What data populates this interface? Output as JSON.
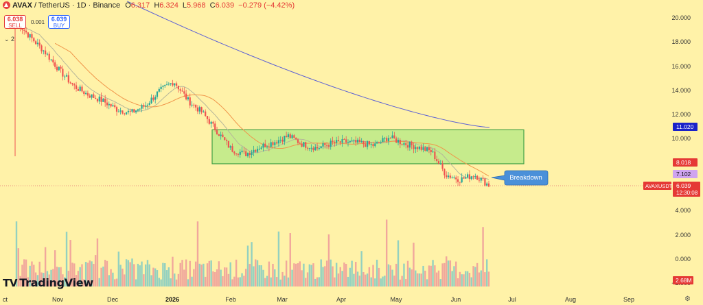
{
  "header": {
    "symbol": "AVAX",
    "pair_text": " / TetherUS · 1D · Binance",
    "open_label": "O",
    "open": "6.317",
    "high_label": "H",
    "high": "6.324",
    "low_label": "L",
    "low": "5.968",
    "close_label": "C",
    "close": "6.039",
    "change": "−0.279 (−4.42%)",
    "logo_icon": "avax-icon"
  },
  "trade": {
    "sell_price": "6.038",
    "sell_label": "SELL",
    "buy_price": "6.039",
    "buy_label": "BUY",
    "spread": "0.001",
    "qty_label": "2"
  },
  "branding": {
    "name": "TradingView",
    "icon": "tradingview-icon"
  },
  "annotation": {
    "text": "Breakdown"
  },
  "chart_data": {
    "type": "candlestick",
    "title": "",
    "y_ticks": [
      "20.000",
      "18.000",
      "16.000",
      "14.000",
      "12.000",
      "10.000",
      "4.000",
      "2.000",
      "0.000",
      "−2.000"
    ],
    "x_ticks": [
      "ct",
      "Nov",
      "Dec",
      "2026",
      "Feb",
      "Mar",
      "Apr",
      "May",
      "Jun",
      "Jul",
      "Aug",
      "Sep"
    ],
    "price_range_approx": [
      4,
      21
    ],
    "price_levels": [
      {
        "value": "11.020",
        "label": "MA (long)",
        "color": "#1a22c9"
      },
      {
        "value": "8.018",
        "label": "MA (mid)",
        "color": "#e53935"
      },
      {
        "value": "7.102",
        "label": "MA (short)",
        "color": "#cfa4f0"
      }
    ],
    "last_price": {
      "symbol": "AVAXUSDT",
      "value": "6.039",
      "countdown": "12:30:08"
    },
    "volume_label": "2.68M",
    "range_box": {
      "low": 7.8,
      "high": 10.6,
      "from": "Jan 28",
      "to": "Jul 3"
    },
    "close_series_approx": [
      19.5,
      18.2,
      17.0,
      15.5,
      14.2,
      13.5,
      13.0,
      12.3,
      12.0,
      12.6,
      13.8,
      14.6,
      13.0,
      12.0,
      10.5,
      9.0,
      8.6,
      9.2,
      9.6,
      10.1,
      9.4,
      9.1,
      9.5,
      9.6,
      9.5,
      9.3,
      10.0,
      9.5,
      9.2,
      8.8,
      6.9,
      6.5,
      6.9,
      6.04
    ],
    "colors": {
      "up": "#26a69a",
      "down": "#ef5350",
      "box_fill": "#a8e67c",
      "box_border": "#43a047",
      "long_ma": "#5a5fd6",
      "mid_ma": "#f0954a",
      "short_ma": "#b6b69a"
    }
  }
}
